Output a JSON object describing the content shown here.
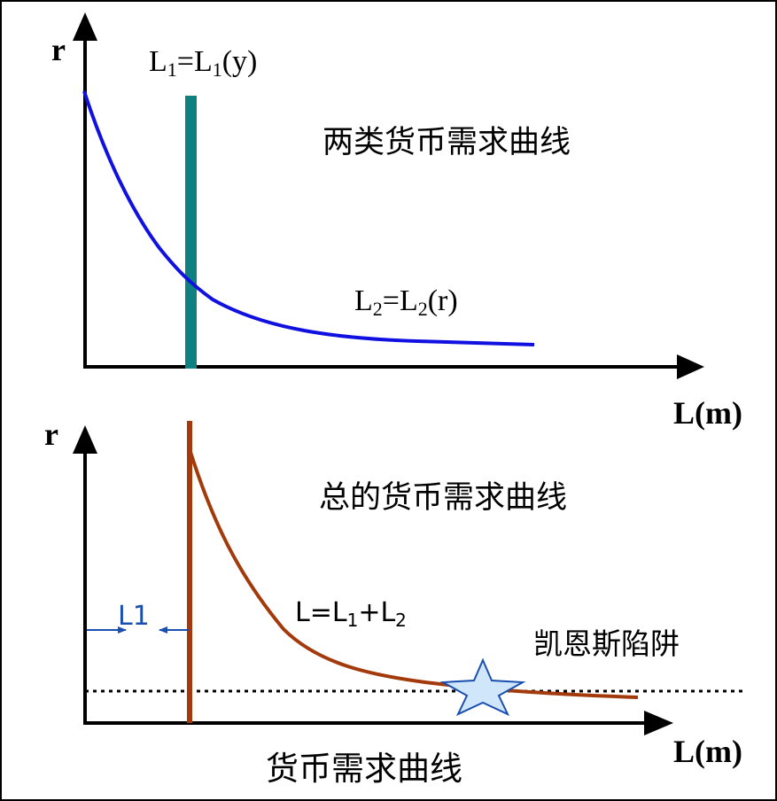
{
  "top_panel": {
    "y_axis_label": "r",
    "x_axis_label": "L(m)",
    "title": "两类货币需求曲线",
    "l1_label": {
      "base": "L",
      "sub": "1",
      "eq": "=L",
      "sub2": "1",
      "tail": "(y)"
    },
    "l2_label": {
      "base": "L",
      "sub": "2",
      "eq": "=L",
      "sub2": "2",
      "tail": "(r)"
    },
    "colors": {
      "l1_line": "#0f7f80",
      "l2_curve": "#1010e0"
    }
  },
  "bottom_panel": {
    "y_axis_label": "r",
    "x_axis_label": "L(m)",
    "title": "总的货币需求曲线",
    "total_label": {
      "base": "L=L",
      "sub1": "1",
      "plus": "+L",
      "sub2": "2"
    },
    "l1_width_label": "L1",
    "trap_label": "凯恩斯陷阱",
    "colors": {
      "curve": "#a33a0c",
      "l1_marker": "#1a4fb0",
      "star_fill": "#cfe6fb",
      "star_stroke": "#1a4fb0"
    }
  },
  "caption": "货币需求曲线"
}
